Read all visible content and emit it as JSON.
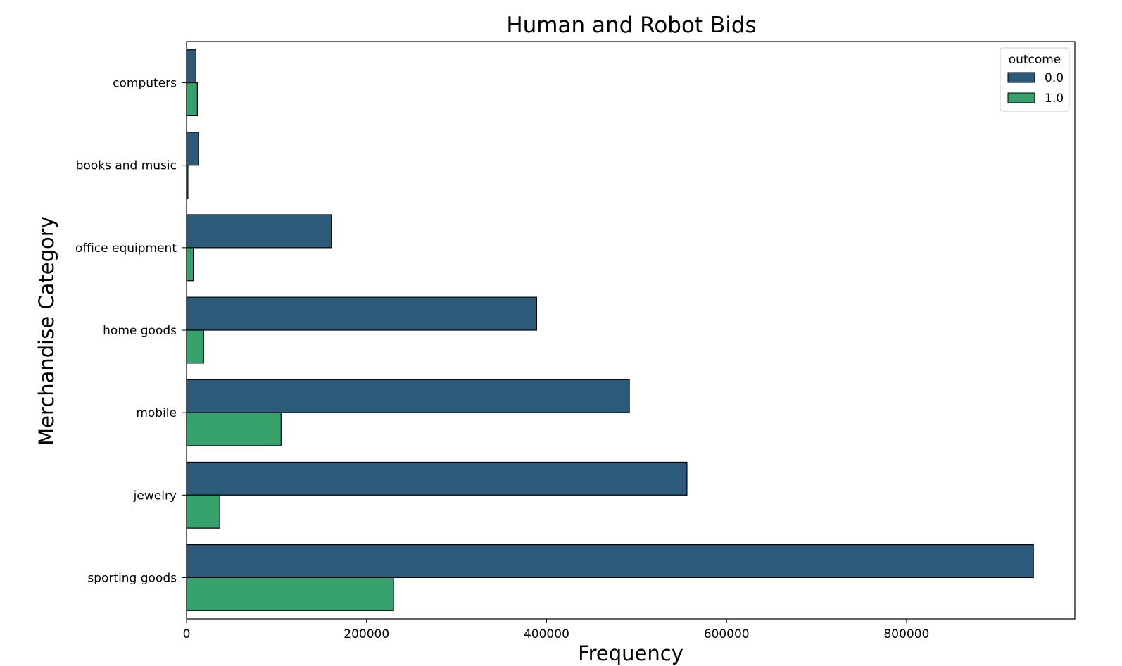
{
  "chart_data": {
    "type": "bar",
    "orientation": "horizontal",
    "title": "Human and Robot Bids",
    "xlabel": "Frequency",
    "ylabel": "Merchandise Category",
    "categories": [
      "computers",
      "books and music",
      "office equipment",
      "home goods",
      "mobile",
      "jewelry",
      "sporting goods"
    ],
    "series": [
      {
        "name": "0.0",
        "color": "#2c5a7a",
        "values": [
          10500,
          13500,
          161000,
          389000,
          492000,
          556000,
          941000
        ]
      },
      {
        "name": "1.0",
        "color": "#37a16b",
        "values": [
          12000,
          1500,
          7500,
          19000,
          105000,
          37000,
          230000
        ]
      }
    ],
    "xlim": [
      0,
      987000
    ],
    "xticks": [
      0,
      200000,
      400000,
      600000,
      800000
    ],
    "xtick_labels": [
      "0",
      "200000",
      "400000",
      "600000",
      "800000"
    ],
    "legend": {
      "title": "outcome",
      "position": "top-right"
    },
    "grid": false
  }
}
